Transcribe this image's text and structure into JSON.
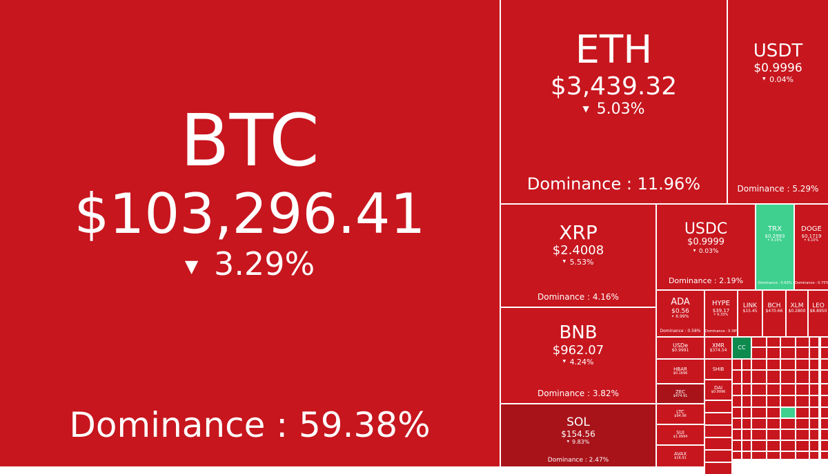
{
  "tiles": [
    {
      "name": "BTC",
      "price": "$103,296.41",
      "change": "3.29%",
      "dominance": "Dominance : 59.38%"
    },
    {
      "name": "ETH",
      "price": "$3,439.32",
      "change": "5.03%",
      "dominance": "Dominance : 11.96%"
    },
    {
      "name": "USDT",
      "price": "$0.9996",
      "change": "0.04%",
      "dominance": "Dominance : 5.29%"
    },
    {
      "name": "XRP",
      "price": "$2.4008",
      "change": "5.53%",
      "dominance": "Dominance : 4.16%"
    },
    {
      "name": "BNB",
      "price": "$962.07",
      "change": "4.24%",
      "dominance": "Dominance : 3.82%"
    },
    {
      "name": "SOL",
      "price": "$154.56",
      "change": "9.83%",
      "dominance": "Dominance : 2.47%"
    },
    {
      "name": "USDC",
      "price": "$0.9999",
      "change": "0.03%",
      "dominance": "Dominance : 2.19%"
    },
    {
      "name": "TRX",
      "price": "$0.2993",
      "change": "4.19%",
      "dominance": "Dominance : 0.63%"
    },
    {
      "name": "DOGE",
      "price": "$0.1719",
      "change": "6.10%",
      "dominance": "Dominance : 0.75%"
    },
    {
      "name": "ADA",
      "price": "$0.56",
      "change": "6.99%",
      "dominance": "Dominance : 0.58%"
    },
    {
      "name": "HYPE",
      "price": "$39.17",
      "change": "6.33%",
      "dominance": "Dominance : 0.38%"
    },
    {
      "name": "LINK",
      "price": "$15.45"
    },
    {
      "name": "BCH",
      "price": "$470.66"
    },
    {
      "name": "XLM",
      "price": "$0.2800"
    },
    {
      "name": "LEO",
      "price": "$8.8950"
    },
    {
      "name": "USDe",
      "price": "$0.9991"
    },
    {
      "name": "XMR",
      "price": "$374.54"
    },
    {
      "name": "CC"
    },
    {
      "name": "HBAR",
      "price": "$0.1696"
    },
    {
      "name": "ZEC",
      "price": "$474.91"
    },
    {
      "name": "LTC",
      "price": "$94.96"
    },
    {
      "name": "SUI",
      "price": "$1.9994"
    },
    {
      "name": "AVAX",
      "price": "$16.91"
    },
    {
      "name": "SHIB"
    },
    {
      "name": "DAI",
      "price": "$0.9996"
    }
  ]
}
